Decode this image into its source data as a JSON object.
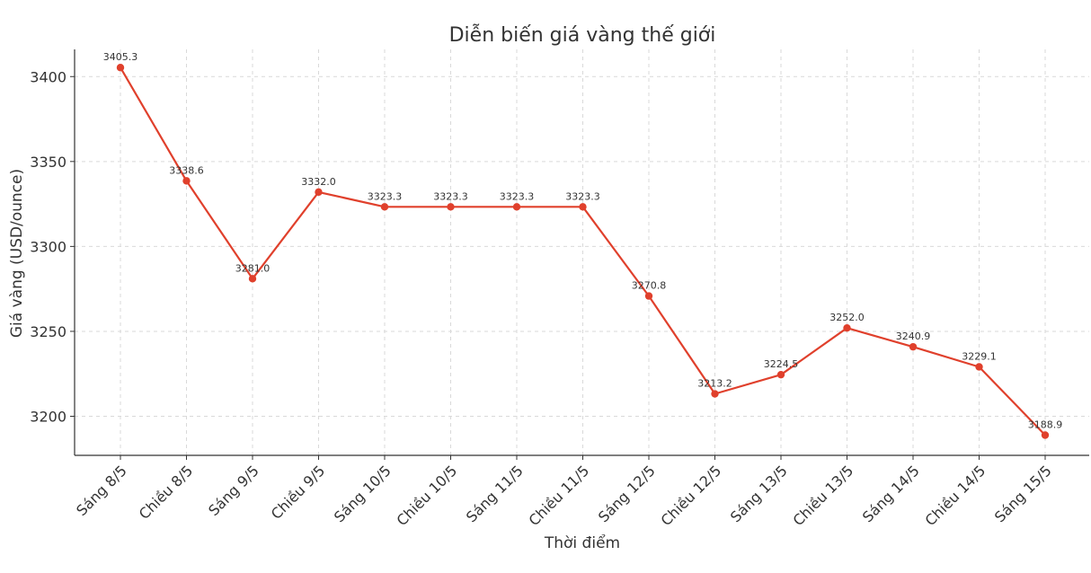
{
  "chart_data": {
    "type": "line",
    "title": "Diễn biến giá vàng thế giới",
    "xlabel": "Thời điểm",
    "ylabel": "Giá vàng (USD/ounce)",
    "categories": [
      "Sáng 8/5",
      "Chiều 8/5",
      "Sáng 9/5",
      "Chiều 9/5",
      "Sáng 10/5",
      "Chiều 10/5",
      "Sáng 11/5",
      "Chiều 11/5",
      "Sáng 12/5",
      "Chiều 12/5",
      "Sáng 13/5",
      "Chiều 13/5",
      "Sáng 14/5",
      "Chiều 14/5",
      "Sáng 15/5"
    ],
    "series": [
      {
        "values": [
          3405.3,
          3338.6,
          3281.0,
          3332.0,
          3323.3,
          3323.3,
          3323.3,
          3323.3,
          3270.8,
          3213.2,
          3224.5,
          3252.0,
          3240.9,
          3229.1,
          3188.9
        ],
        "data_labels": [
          "3405.3",
          "3338.6",
          "3281.0",
          "3332.0",
          "3323.3",
          "3323.3",
          "3323.3",
          "3323.3",
          "3270.8",
          "3213.2",
          "3224.5",
          "3252.0",
          "3240.9",
          "3229.1",
          "3188.9"
        ],
        "color": "#e0402c"
      }
    ],
    "yticks": [
      3200,
      3250,
      3300,
      3350,
      3400
    ],
    "ylim": [
      3177,
      3416
    ],
    "grid": true
  }
}
